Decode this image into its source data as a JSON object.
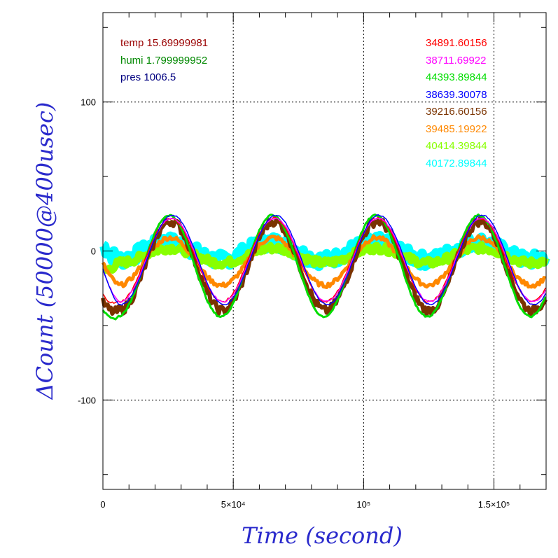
{
  "chart_data": {
    "type": "line",
    "xlabel": "Time (second)",
    "ylabel": "ΔCount (50000@400usec)",
    "xlim": [
      0,
      170000
    ],
    "ylim": [
      -160,
      160
    ],
    "x_ticks": [
      {
        "value": 0,
        "label": "0"
      },
      {
        "value": 50000,
        "label": "5×10⁴"
      },
      {
        "value": 100000,
        "label": "10⁵"
      },
      {
        "value": 150000,
        "label": "1.5×10⁵"
      }
    ],
    "y_ticks": [
      {
        "value": 100,
        "label": "100"
      },
      {
        "value": 0,
        "label": "0"
      },
      {
        "value": -100,
        "label": "-100"
      }
    ],
    "grid": "dotted",
    "env_legend": [
      {
        "text": "temp 15.69999981",
        "color": "#990000"
      },
      {
        "text": "humi 1.799999952",
        "color": "#008800"
      },
      {
        "text": "pres 1006.5",
        "color": "#000080"
      }
    ],
    "series": [
      {
        "name": "34891.60156",
        "color": "#ff0000",
        "amplitude": 28,
        "offset": -6,
        "phase": 0.15,
        "noise": 1.5,
        "width": 1.5
      },
      {
        "name": "38711.69922",
        "color": "#ff00ff",
        "amplitude": 28,
        "offset": -6,
        "phase": 0.1,
        "noise": 1.0,
        "width": 1.5
      },
      {
        "name": "44393.89844",
        "color": "#00dd00",
        "amplitude": 34,
        "offset": -10,
        "phase": 0.25,
        "noise": 1.2,
        "width": 3
      },
      {
        "name": "38639.30078",
        "color": "#0000ff",
        "amplitude": 30,
        "offset": -6,
        "phase": 0.05,
        "noise": 0.8,
        "width": 1.5
      },
      {
        "name": "39216.60156",
        "color": "#7a3300",
        "amplitude": 30,
        "offset": -10,
        "phase": 0.15,
        "noise": 6,
        "width": 6
      },
      {
        "name": "39485.19922",
        "color": "#ff8800",
        "amplitude": 16,
        "offset": -7,
        "phase": 0.2,
        "noise": 3,
        "width": 5
      },
      {
        "name": "40414.39844",
        "color": "#88ff00",
        "amplitude": 5,
        "offset": -3,
        "phase": 0.2,
        "noise": 5,
        "width": 10
      },
      {
        "name": "40172.89844",
        "color": "#00ffff",
        "amplitude": 6,
        "offset": 0,
        "phase": 0.3,
        "noise": 9,
        "width": 14
      }
    ],
    "period_seconds": 39600,
    "first_peak_seconds": 27000
  }
}
